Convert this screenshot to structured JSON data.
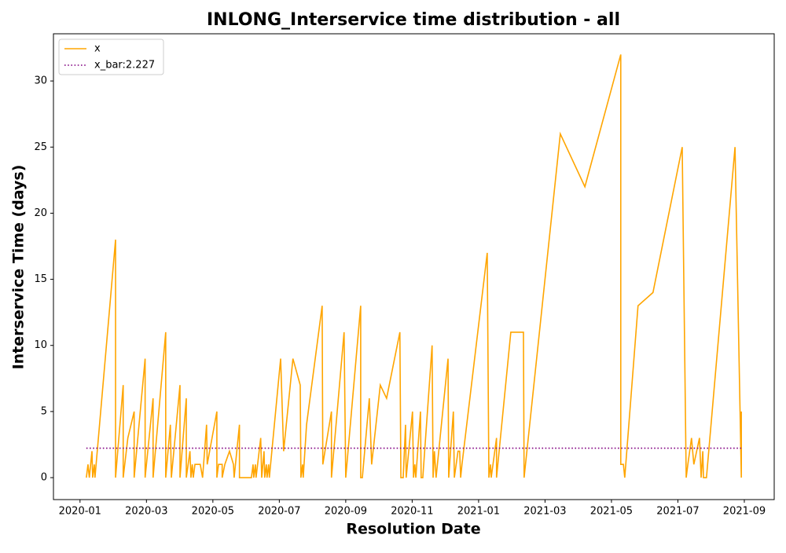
{
  "chart_data": {
    "type": "line",
    "title": "INLONG_Interservice time distribution - all",
    "x_label": "Resolution Date",
    "y_label": "Interservice Time (days)",
    "legend": "upper left",
    "xlim": [
      -0.8,
      20.9
    ],
    "xticks": [
      {
        "value": 0,
        "label": "2020-01"
      },
      {
        "value": 2,
        "label": "2020-03"
      },
      {
        "value": 4,
        "label": "2020-05"
      },
      {
        "value": 6,
        "label": "2020-07"
      },
      {
        "value": 8,
        "label": "2020-09"
      },
      {
        "value": 10,
        "label": "2020-11"
      },
      {
        "value": 12,
        "label": "2021-01"
      },
      {
        "value": 14,
        "label": "2021-03"
      },
      {
        "value": 16,
        "label": "2021-05"
      },
      {
        "value": 18,
        "label": "2021-07"
      },
      {
        "value": 20,
        "label": "2021-09"
      }
    ],
    "ylim": [
      -1.66,
      33.57
    ],
    "yticks": [
      0,
      5,
      10,
      15,
      20,
      25,
      30
    ],
    "series": [
      {
        "name": "x",
        "color": "#ffa500",
        "style": "solid",
        "x": [
          0.19,
          0.24,
          0.28,
          0.36,
          0.38,
          0.43,
          0.45,
          1.07,
          1.07,
          1.3,
          1.3,
          1.44,
          1.63,
          1.63,
          1.96,
          1.96,
          2.2,
          2.2,
          2.58,
          2.58,
          2.72,
          2.75,
          3.01,
          3.01,
          3.2,
          3.2,
          3.31,
          3.34,
          3.38,
          3.41,
          3.46,
          3.62,
          3.69,
          3.81,
          3.83,
          4.12,
          4.12,
          4.17,
          4.28,
          4.28,
          4.36,
          4.5,
          4.62,
          4.64,
          4.8,
          4.8,
          5.16,
          5.21,
          5.23,
          5.28,
          5.3,
          5.44,
          5.47,
          5.54,
          5.56,
          5.61,
          5.63,
          5.68,
          5.7,
          6.04,
          6.13,
          6.41,
          6.63,
          6.65,
          6.7,
          6.72,
          6.82,
          7.29,
          7.31,
          7.57,
          7.57,
          7.95,
          8.0,
          8.45,
          8.45,
          8.5,
          8.71,
          8.78,
          9.04,
          9.23,
          9.63,
          9.66,
          9.73,
          9.8,
          9.82,
          10.01,
          10.04,
          10.08,
          10.11,
          10.25,
          10.27,
          10.32,
          10.6,
          10.63,
          10.67,
          10.72,
          11.08,
          11.1,
          11.24,
          11.27,
          11.38,
          11.43,
          11.46,
          11.5,
          11.69,
          12.26,
          12.31,
          12.36,
          12.38,
          12.54,
          12.54,
          12.97,
          13.35,
          13.37,
          14.46,
          15.2,
          16.28,
          16.28,
          16.36,
          16.4,
          16.8,
          17.25,
          18.13,
          18.25,
          18.3,
          18.41,
          18.48,
          18.65,
          18.7,
          18.75,
          18.77,
          18.86,
          19.72,
          19.91,
          19.91
        ],
        "values": [
          0,
          1,
          0,
          2,
          0,
          1,
          0,
          18,
          0,
          7,
          0,
          3,
          5,
          0,
          9,
          0,
          6,
          0,
          11,
          0,
          4,
          0,
          7,
          0,
          6,
          0,
          2,
          0,
          1,
          0,
          1,
          1,
          0,
          4,
          1,
          5,
          0,
          1,
          1,
          0,
          1,
          2,
          1,
          0,
          4,
          0,
          0,
          1,
          0,
          1,
          0,
          3,
          0,
          2,
          0,
          1,
          0,
          1,
          0,
          9,
          2,
          9,
          7,
          0,
          1,
          0,
          4,
          13,
          1,
          5,
          0,
          11,
          0,
          13,
          0,
          0,
          6,
          1,
          7,
          6,
          11,
          0,
          0,
          4,
          0,
          5,
          0,
          1,
          0,
          5,
          0,
          0,
          10,
          0,
          2,
          0,
          9,
          0,
          5,
          0,
          2,
          2,
          0,
          1,
          5,
          17,
          0,
          1,
          0,
          3,
          0,
          11,
          11,
          0,
          26,
          22,
          32,
          1,
          1,
          0,
          13,
          14,
          25,
          0,
          1,
          3,
          1,
          3,
          0,
          2,
          0,
          0,
          25,
          0,
          5
        ]
      },
      {
        "name": "x_bar:2.227",
        "color": "#800080",
        "style": "dotted",
        "x": [
          0.19,
          19.91
        ],
        "values": [
          2.227,
          2.227
        ]
      }
    ]
  }
}
